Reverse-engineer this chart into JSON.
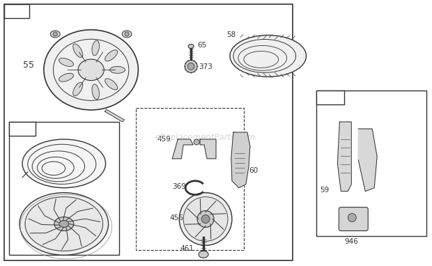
{
  "bg_color": "#ffffff",
  "line_color": "#333333",
  "watermark": "eReplacementParts.com",
  "fig_w": 6.2,
  "fig_h": 3.82,
  "dpi": 100
}
